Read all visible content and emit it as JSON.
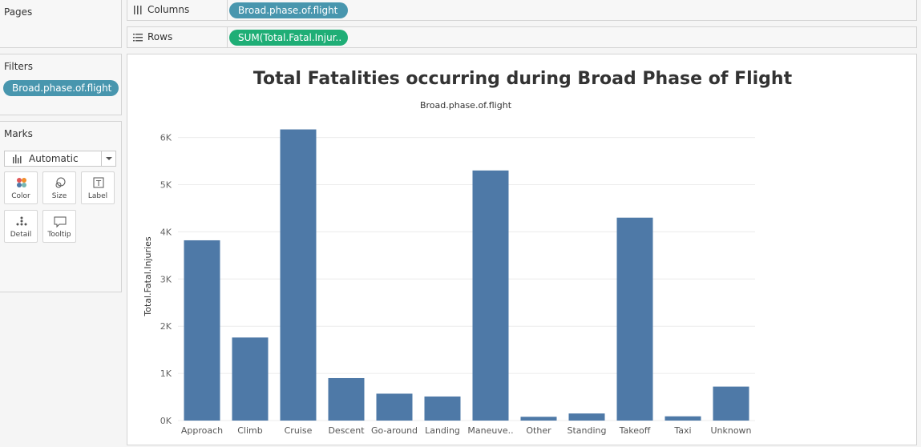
{
  "pages": {
    "title": "Pages"
  },
  "filters": {
    "title": "Filters",
    "pill": "Broad.phase.of.flight"
  },
  "marks": {
    "title": "Marks",
    "type": "Automatic",
    "buttons": {
      "color": "Color",
      "size": "Size",
      "label": "Label",
      "detail": "Detail",
      "tooltip": "Tooltip"
    }
  },
  "shelves": {
    "columns": {
      "label": "Columns",
      "pill": "Broad.phase.of.flight"
    },
    "rows": {
      "label": "Rows",
      "pill": "SUM(Total.Fatal.Injur.."
    }
  },
  "colors": {
    "bar": "#4e79a7",
    "pill_dimension": "#4896ae",
    "pill_measure": "#1fae76"
  },
  "chart_data": {
    "type": "bar",
    "title": "Total Fatalities occurring during Broad Phase of Flight",
    "column_header": "Broad.phase.of.flight",
    "ylabel": "Total.Fatal.Injuries",
    "ylim": [
      0,
      6400
    ],
    "yticks": [
      0,
      1000,
      2000,
      3000,
      4000,
      5000,
      6000
    ],
    "ytick_labels": [
      "0K",
      "1K",
      "2K",
      "3K",
      "4K",
      "5K",
      "6K"
    ],
    "grid": true,
    "categories": [
      "Approach",
      "Climb",
      "Cruise",
      "Descent",
      "Go-around",
      "Landing",
      "Maneuve..",
      "Other",
      "Standing",
      "Takeoff",
      "Taxi",
      "Unknown"
    ],
    "values": [
      3820,
      1760,
      6170,
      900,
      570,
      510,
      5300,
      80,
      150,
      4300,
      90,
      720
    ]
  }
}
